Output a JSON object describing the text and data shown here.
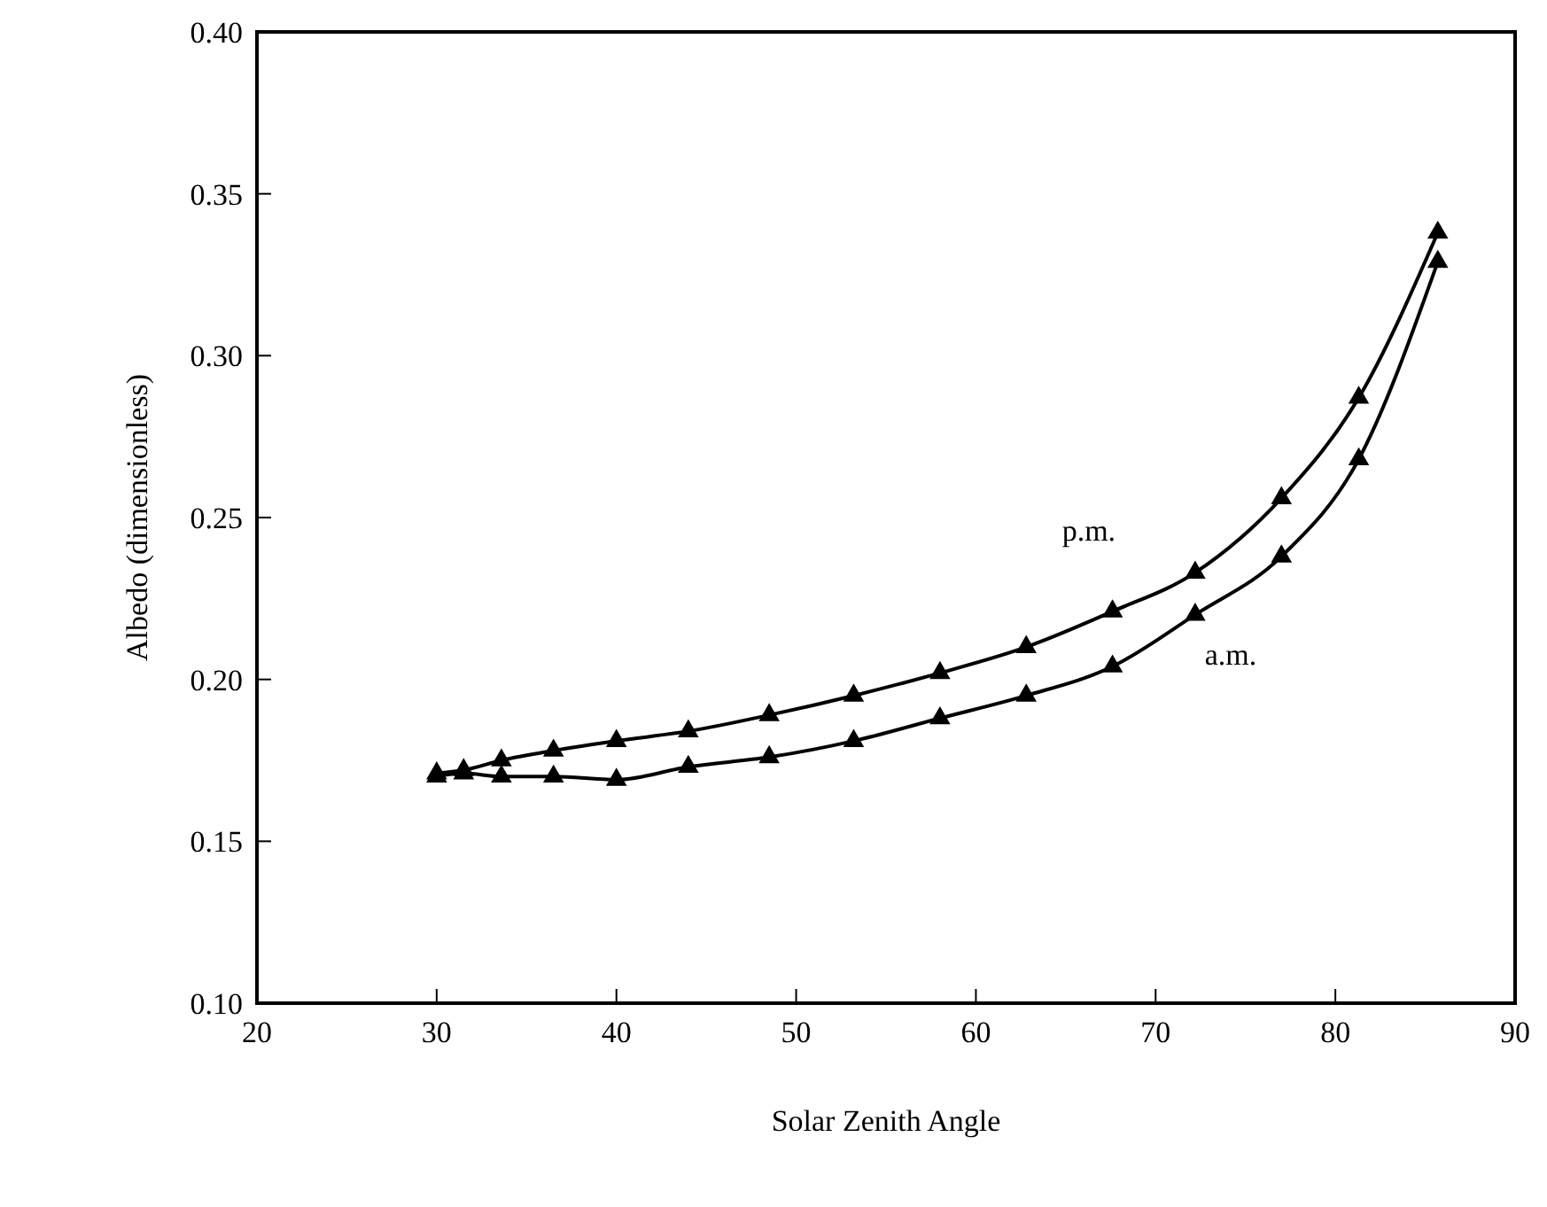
{
  "chart_data": {
    "type": "line",
    "xlabel": "Solar Zenith Angle",
    "ylabel": "Albedo (dimensionless)",
    "xlim": [
      20,
      90
    ],
    "xticks": [
      20,
      30,
      40,
      50,
      60,
      70,
      80,
      90
    ],
    "ylim": [
      0.1,
      0.4
    ],
    "yticks": [
      {
        "value": 0.1,
        "label": "0.10"
      },
      {
        "value": 0.15,
        "label": "0.15"
      },
      {
        "value": 0.2,
        "label": "0.20"
      },
      {
        "value": 0.25,
        "label": "0.25"
      },
      {
        "value": 0.3,
        "label": "0.30"
      },
      {
        "value": 0.35,
        "label": "0.35"
      },
      {
        "value": 0.4,
        "label": "0.40"
      }
    ],
    "marker": "triangle",
    "grid": false,
    "x": [
      30,
      31.5,
      33.6,
      36.5,
      40,
      44,
      48.5,
      53.2,
      58,
      62.8,
      67.6,
      72.2,
      77,
      81.3,
      85.7
    ],
    "series": [
      {
        "name": "p.m.",
        "color": "#000000",
        "values": [
          0.171,
          0.172,
          0.175,
          0.178,
          0.181,
          0.184,
          0.189,
          0.195,
          0.202,
          0.21,
          0.221,
          0.233,
          0.256,
          0.287,
          0.338
        ]
      },
      {
        "name": "a.m.",
        "color": "#000000",
        "values": [
          0.17,
          0.171,
          0.17,
          0.17,
          0.169,
          0.173,
          0.176,
          0.181,
          0.188,
          0.195,
          0.204,
          0.22,
          0.238,
          0.268,
          0.329
        ]
      }
    ]
  }
}
